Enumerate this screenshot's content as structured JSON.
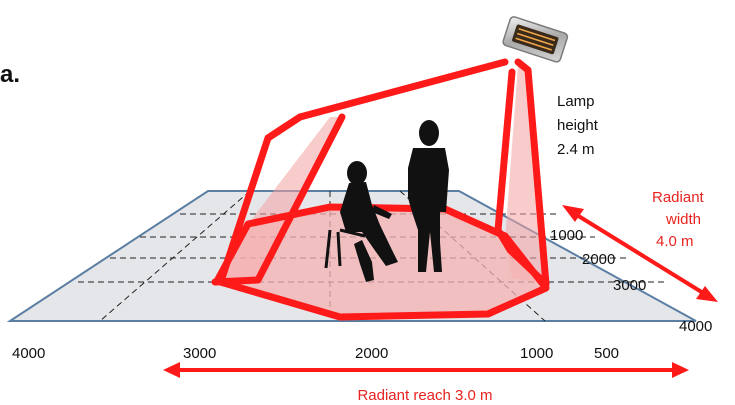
{
  "header_fragment": "a.",
  "lamp_height": {
    "line1": "Lamp",
    "line2": "height",
    "line3": "2.4 m"
  },
  "radiant_width": {
    "line1": "Radiant",
    "line2": "width",
    "line3": "4.0 m"
  },
  "radiant_reach": "Radiant reach 3.0 m",
  "depth_ticks": [
    "1000",
    "2000",
    "3000",
    "4000"
  ],
  "front_ticks": [
    "4000",
    "3000",
    "2000",
    "1000",
    "500"
  ],
  "colors": {
    "beam": "#ff1a1a",
    "beam_fill": "#f7a7a7",
    "label_red": "#e8231f",
    "floor_fill": "#e4e6ea",
    "floor_edge": "#5b7ea3",
    "silhouette": "#111111"
  },
  "icons": [
    "heater-lamp-icon",
    "seated-woman-silhouette",
    "standing-man-silhouette"
  ]
}
